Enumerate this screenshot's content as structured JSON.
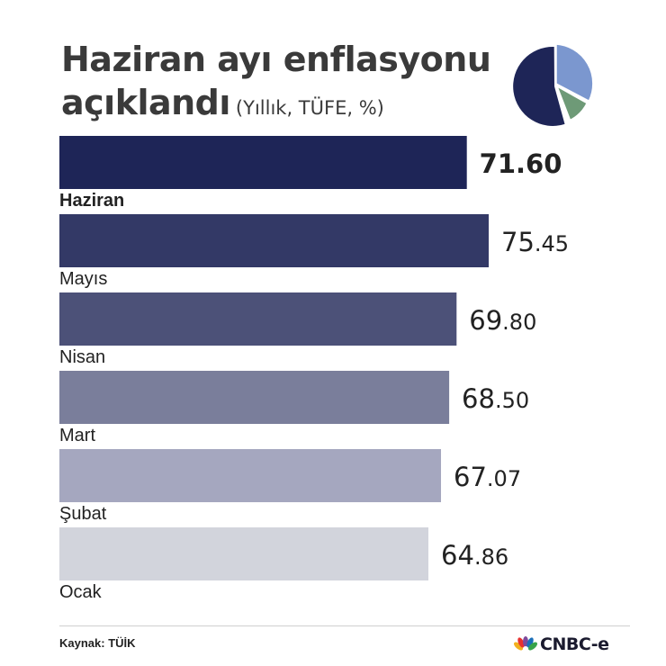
{
  "header": {
    "title_line1_pre": "Haziran ayı ",
    "title_line1_hl": "enflasyonu",
    "title_line2": "açıklandı",
    "subtitle": "(Yıllık, TÜFE, %)"
  },
  "footer": {
    "source": "Kaynak: TÜİK",
    "logo_text": "CNBC-e"
  },
  "colors": {
    "bars": [
      "#1e2557",
      "#333966",
      "#4c5178",
      "#7a7e9b",
      "#a5a7bf",
      "#d2d4dc"
    ],
    "highlight": "#6e9a77",
    "pie": [
      "#1e2557",
      "#7b97cf",
      "#6e9a77"
    ]
  },
  "chart_data": {
    "type": "bar",
    "orientation": "horizontal",
    "title": "Haziran ayı enflasyonu açıklandı",
    "subtitle": "(Yıllık, TÜFE, %)",
    "categories": [
      "Haziran",
      "Mayıs",
      "Nisan",
      "Mart",
      "Şubat",
      "Ocak"
    ],
    "values": [
      71.6,
      75.45,
      69.8,
      68.5,
      67.07,
      64.86
    ],
    "value_labels": [
      {
        "int": "71",
        "dec": ".60"
      },
      {
        "int": "75",
        "dec": ".45"
      },
      {
        "int": "69",
        "dec": ".80"
      },
      {
        "int": "68",
        "dec": ".50"
      },
      {
        "int": "67",
        "dec": ".07"
      },
      {
        "int": "64",
        "dec": ".86"
      }
    ],
    "highlight_index": 0,
    "xlabel": "",
    "ylabel": "",
    "grid": false,
    "legend": "none"
  }
}
